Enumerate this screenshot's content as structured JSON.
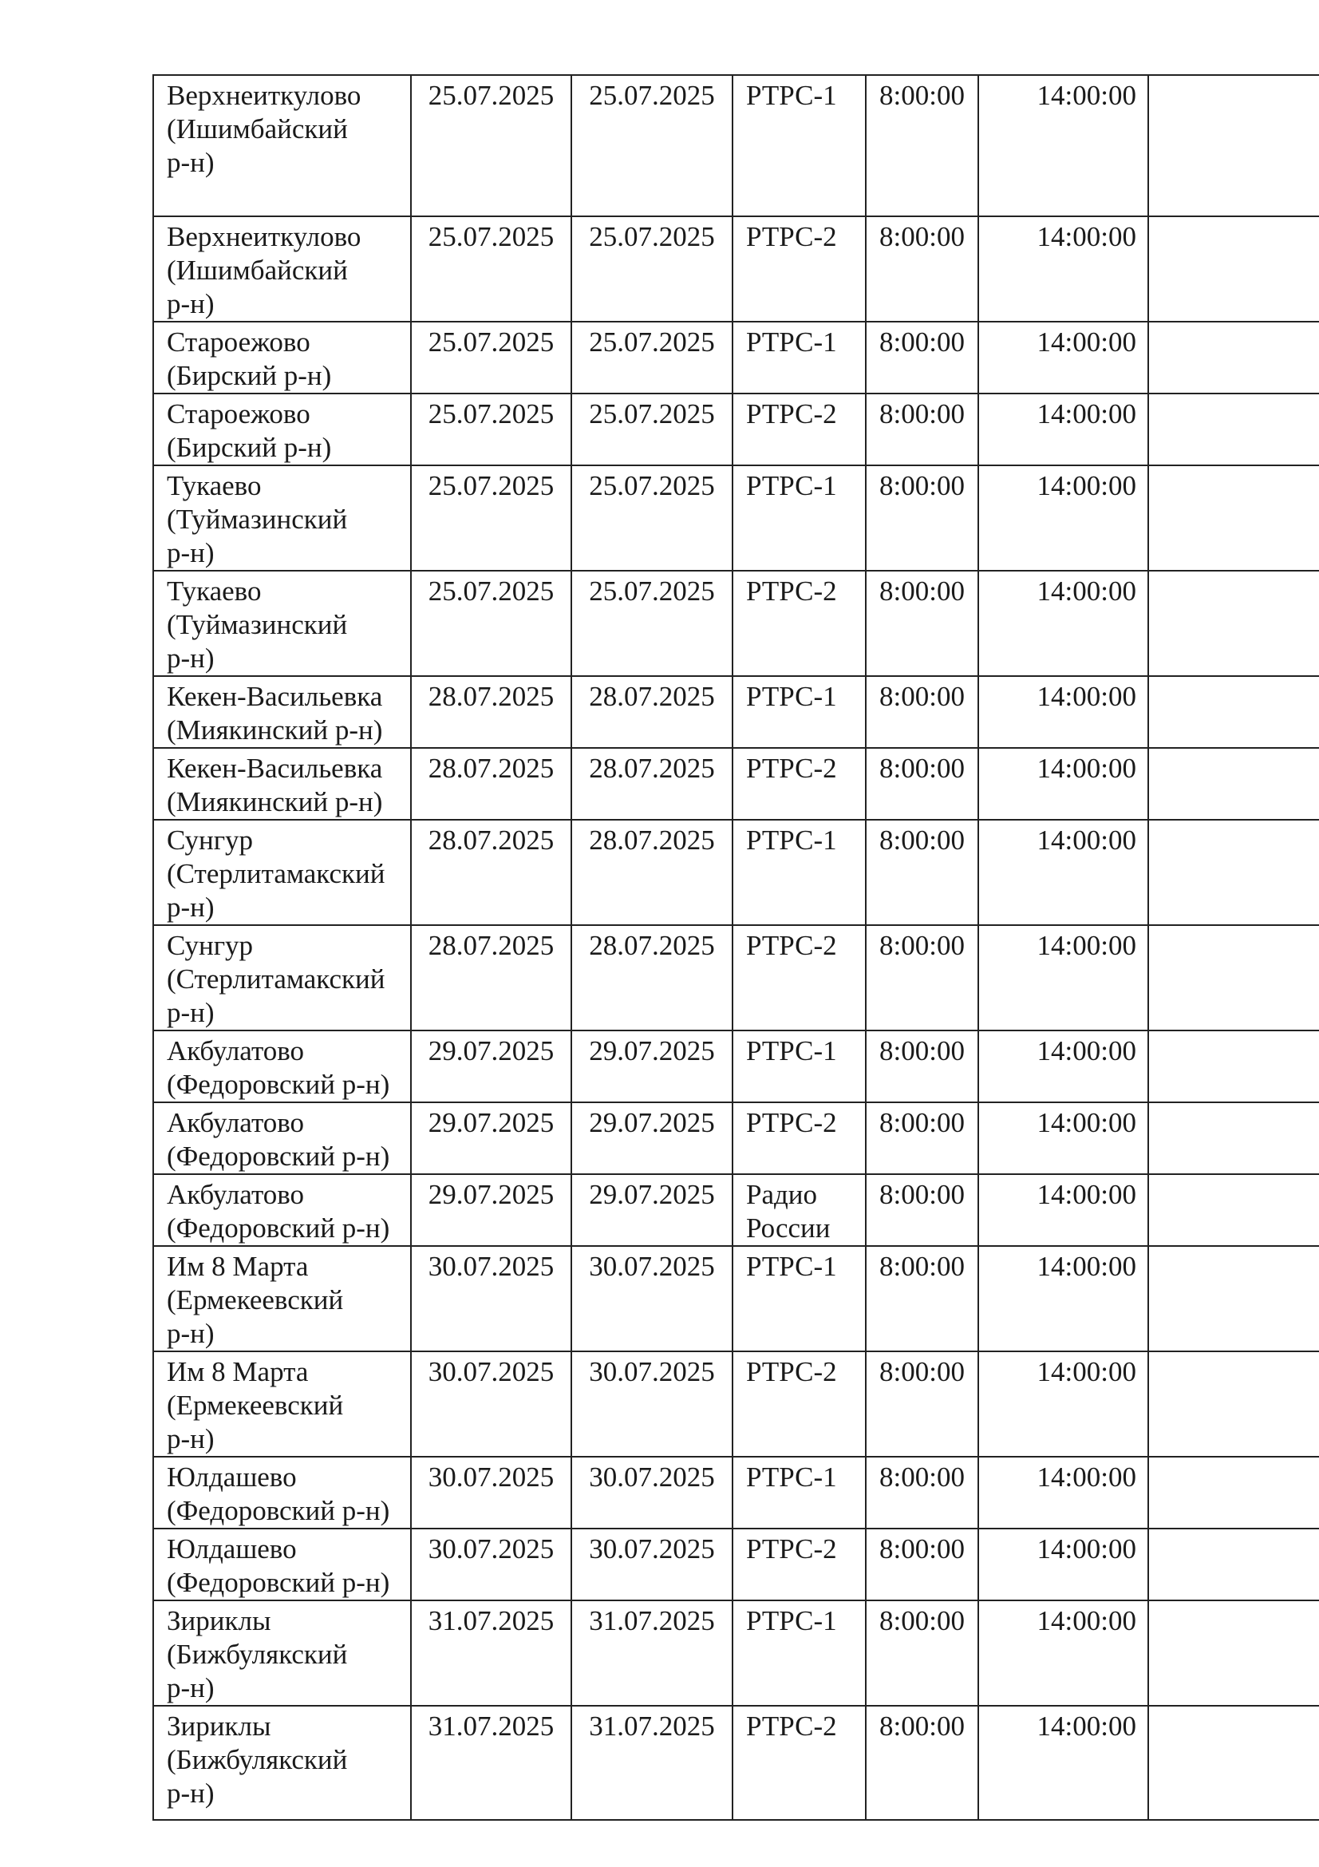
{
  "rows": [
    {
      "place": "Верхнеиткулово\n(Ишимбайский\nр-н)",
      "start": "25.07.2025",
      "end": "25.07.2025",
      "channel": "РТРС-1",
      "from": "8:00:00",
      "to": "14:00:00",
      "note": ""
    },
    {
      "place": "Верхнеиткулово\n(Ишимбайский\nр-н)",
      "start": "25.07.2025",
      "end": "25.07.2025",
      "channel": "РТРС-2",
      "from": "8:00:00",
      "to": "14:00:00",
      "note": ""
    },
    {
      "place": "Староежово\n(Бирский р-н)",
      "start": "25.07.2025",
      "end": "25.07.2025",
      "channel": "РТРС-1",
      "from": "8:00:00",
      "to": "14:00:00",
      "note": ""
    },
    {
      "place": "Староежово\n(Бирский р-н)",
      "start": "25.07.2025",
      "end": "25.07.2025",
      "channel": "РТРС-2",
      "from": "8:00:00",
      "to": "14:00:00",
      "note": ""
    },
    {
      "place": "Тукаево\n(Туймазинский\nр-н)",
      "start": "25.07.2025",
      "end": "25.07.2025",
      "channel": "РТРС-1",
      "from": "8:00:00",
      "to": "14:00:00",
      "note": ""
    },
    {
      "place": "Тукаево\n(Туймазинский\nр-н)",
      "start": "25.07.2025",
      "end": "25.07.2025",
      "channel": "РТРС-2",
      "from": "8:00:00",
      "to": "14:00:00",
      "note": ""
    },
    {
      "place": "Кекен-Васильевка\n(Миякинский р-н)",
      "start": "28.07.2025",
      "end": "28.07.2025",
      "channel": "РТРС-1",
      "from": "8:00:00",
      "to": "14:00:00",
      "note": ""
    },
    {
      "place": "Кекен-Васильевка\n(Миякинский р-н)",
      "start": "28.07.2025",
      "end": "28.07.2025",
      "channel": "РТРС-2",
      "from": "8:00:00",
      "to": "14:00:00",
      "note": ""
    },
    {
      "place": "Сунгур\n(Стерлитамакский\nр-н)",
      "start": "28.07.2025",
      "end": "28.07.2025",
      "channel": "РТРС-1",
      "from": "8:00:00",
      "to": "14:00:00",
      "note": ""
    },
    {
      "place": "Сунгур\n(Стерлитамакский\nр-н)",
      "start": "28.07.2025",
      "end": "28.07.2025",
      "channel": "РТРС-2",
      "from": "8:00:00",
      "to": "14:00:00",
      "note": ""
    },
    {
      "place": "Акбулатово\n(Федоровский р-н)",
      "start": "29.07.2025",
      "end": "29.07.2025",
      "channel": "РТРС-1",
      "from": "8:00:00",
      "to": "14:00:00",
      "note": ""
    },
    {
      "place": "Акбулатово\n(Федоровский р-н)",
      "start": "29.07.2025",
      "end": "29.07.2025",
      "channel": "РТРС-2",
      "from": "8:00:00",
      "to": "14:00:00",
      "note": ""
    },
    {
      "place": "Акбулатово\n(Федоровский р-н)",
      "start": "29.07.2025",
      "end": "29.07.2025",
      "channel": "Радио\nРоссии",
      "from": "8:00:00",
      "to": "14:00:00",
      "note": ""
    },
    {
      "place": "Им 8 Марта\n(Ермекеевский\nр-н)",
      "start": "30.07.2025",
      "end": "30.07.2025",
      "channel": "РТРС-1",
      "from": "8:00:00",
      "to": "14:00:00",
      "note": ""
    },
    {
      "place": "Им 8 Марта\n(Ермекеевский\nр-н)",
      "start": "30.07.2025",
      "end": "30.07.2025",
      "channel": "РТРС-2",
      "from": "8:00:00",
      "to": "14:00:00",
      "note": ""
    },
    {
      "place": "Юлдашево\n(Федоровский р-н)",
      "start": "30.07.2025",
      "end": "30.07.2025",
      "channel": "РТРС-1",
      "from": "8:00:00",
      "to": "14:00:00",
      "note": ""
    },
    {
      "place": "Юлдашево\n(Федоровский р-н)",
      "start": "30.07.2025",
      "end": "30.07.2025",
      "channel": "РТРС-2",
      "from": "8:00:00",
      "to": "14:00:00",
      "note": ""
    },
    {
      "place": "Зириклы\n(Бижбулякский\nр-н)",
      "start": "31.07.2025",
      "end": "31.07.2025",
      "channel": "РТРС-1",
      "from": "8:00:00",
      "to": "14:00:00",
      "note": ""
    },
    {
      "place": "Зириклы\n(Бижбулякский\nр-н)",
      "start": "31.07.2025",
      "end": "31.07.2025",
      "channel": "РТРС-2",
      "from": "8:00:00",
      "to": "14:00:00",
      "note": ""
    }
  ]
}
